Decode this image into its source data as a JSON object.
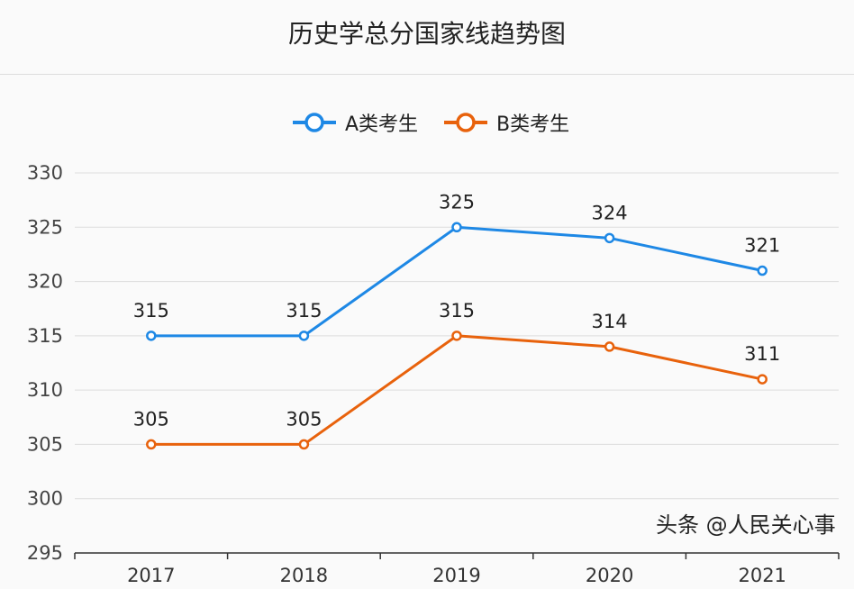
{
  "chart_data": {
    "type": "line",
    "title": "历史学总分国家线趋势图",
    "categories": [
      "2017",
      "2018",
      "2019",
      "2020",
      "2021"
    ],
    "series": [
      {
        "name": "A类考生",
        "values": [
          315,
          315,
          325,
          324,
          321
        ],
        "color": "#1e88e5"
      },
      {
        "name": "B类考生",
        "values": [
          305,
          305,
          315,
          314,
          311
        ],
        "color": "#e8620c"
      }
    ],
    "ylim": [
      295,
      330
    ],
    "yticks": [
      295,
      300,
      305,
      310,
      315,
      320,
      325,
      330
    ],
    "grid": true,
    "legend": "top",
    "data_labels": true
  },
  "watermark": "头条 @人民关心事"
}
